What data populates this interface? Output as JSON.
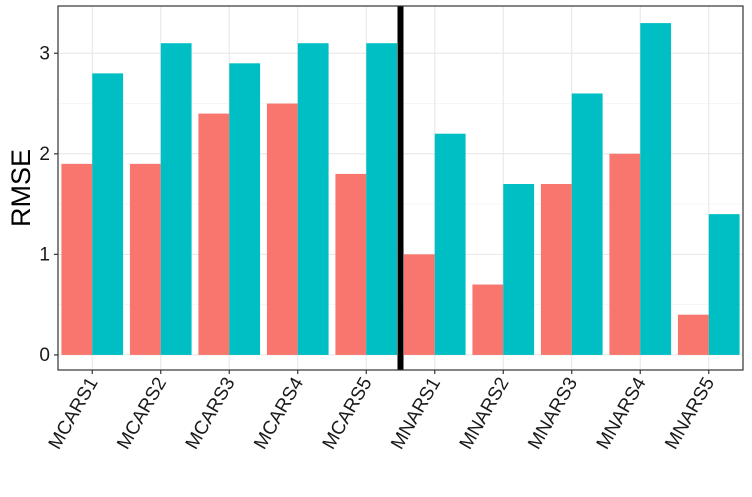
{
  "chart_data": {
    "type": "bar",
    "categories": [
      "MCARS1",
      "MCARS2",
      "MCARS3",
      "MCARS4",
      "MCARS5",
      "MNARS1",
      "MNARS2",
      "MNARS3",
      "MNARS4",
      "MNARS5"
    ],
    "series": [
      {
        "values": [
          1.9,
          1.9,
          2.4,
          2.5,
          1.8,
          1.0,
          0.7,
          1.7,
          2.0,
          0.4
        ],
        "color": "#F8766D"
      },
      {
        "values": [
          2.8,
          3.1,
          2.9,
          3.1,
          3.1,
          2.2,
          1.7,
          2.6,
          3.3,
          1.4
        ],
        "color": "#00BFC4"
      }
    ],
    "xlabel": "",
    "ylabel": "RMSE",
    "ylim": [
      -0.15,
      3.47
    ],
    "yticks": [
      0,
      1,
      2,
      3
    ],
    "grid": true,
    "separator_after_category": "MCARS5"
  }
}
